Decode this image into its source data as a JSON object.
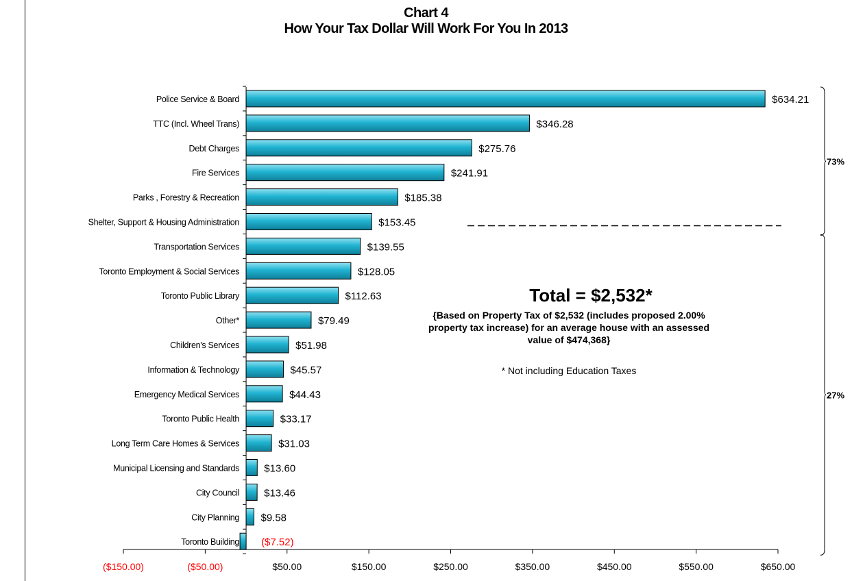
{
  "chart_data": {
    "type": "bar",
    "orientation": "horizontal",
    "title": "Chart 4",
    "subtitle": "How Your Tax Dollar Will Work For You In 2013",
    "categories": [
      "Police Service & Board",
      "TTC (Incl. Wheel Trans)",
      "Debt Charges",
      "Fire Services",
      "Parks , Forestry & Recreation",
      "Shelter, Support & Housing Administration",
      "Transportation Services",
      "Toronto Employment & Social Services",
      "Toronto Public Library",
      "Other*",
      "Children's Services",
      "Information & Technology",
      "Emergency Medical Services",
      "Toronto Public Health",
      "Long Term Care Homes & Services",
      "Municipal Licensing and Standards",
      "City Council",
      "City Planning",
      "Toronto Building"
    ],
    "values": [
      634.21,
      346.28,
      275.76,
      241.91,
      185.38,
      153.45,
      139.55,
      128.05,
      112.63,
      79.49,
      51.98,
      45.57,
      44.43,
      33.17,
      31.03,
      13.6,
      13.46,
      9.58,
      -7.52
    ],
    "value_labels": [
      "$634.21",
      "$346.28",
      "$275.76",
      "$241.91",
      "$185.38",
      "$153.45",
      "$139.55",
      "$128.05",
      "$112.63",
      "$79.49",
      "$51.98",
      "$45.57",
      "$44.43",
      "$33.17",
      "$31.03",
      "$13.60",
      "$13.46",
      "$9.58",
      "($7.52)"
    ],
    "x_ticks": [
      -150,
      -50,
      50,
      150,
      250,
      350,
      450,
      550,
      650
    ],
    "x_tick_labels": [
      "($150.00)",
      "($50.00)",
      "$50.00",
      "$150.00",
      "$250.00",
      "$350.00",
      "$450.00",
      "$550.00",
      "$650.00"
    ],
    "xlim": [
      -150,
      650
    ],
    "xlabel": "",
    "ylabel": "",
    "grid": false,
    "bar_color": "#20b4d2",
    "negative_color": "#ff0000",
    "groups": [
      {
        "label": "73%",
        "first_category": "Police Service & Board",
        "last_category": "Shelter, Support & Housing Administration"
      },
      {
        "label": "27%",
        "first_category": "Transportation Services",
        "last_category": "Toronto Building"
      }
    ],
    "annotations": {
      "total": "Total = $2,532*",
      "basis_lines": [
        "{Based on Property Tax of $2,532 (includes proposed 2.00%",
        "property tax increase) for an average house with an assessed",
        "value of $474,368}"
      ],
      "footnote": "* Not including Education Taxes"
    }
  }
}
